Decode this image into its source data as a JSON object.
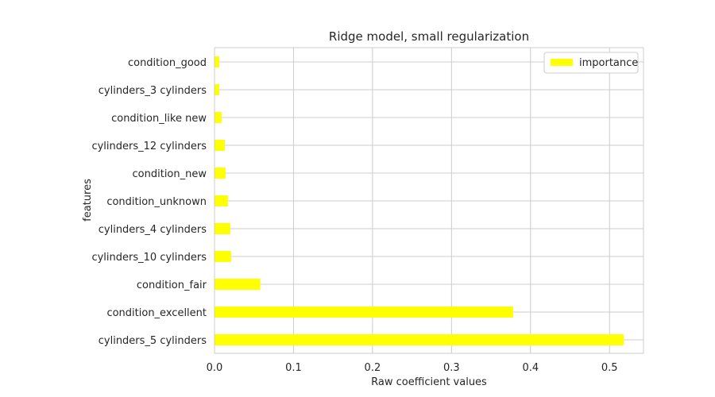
{
  "chart_data": {
    "type": "bar",
    "orientation": "horizontal",
    "title": "Ridge model, small regularization",
    "xlabel": "Raw coefficient values",
    "ylabel": "features",
    "categories": [
      "cylinders_5 cylinders",
      "condition_excellent",
      "condition_fair",
      "cylinders_10 cylinders",
      "cylinders_4 cylinders",
      "condition_unknown",
      "condition_new",
      "cylinders_12 cylinders",
      "condition_like new",
      "cylinders_3 cylinders",
      "condition_good"
    ],
    "series": [
      {
        "name": "importance",
        "color": "#ffff00",
        "values": [
          0.518,
          0.378,
          0.058,
          0.021,
          0.02,
          0.017,
          0.014,
          0.013,
          0.009,
          0.006,
          0.006
        ]
      }
    ],
    "xlim": [
      0,
      0.543
    ],
    "xticks": [
      0.0,
      0.1,
      0.2,
      0.3,
      0.4,
      0.5
    ],
    "xtick_labels": [
      "0.0",
      "0.1",
      "0.2",
      "0.3",
      "0.4",
      "0.5"
    ],
    "grid": true,
    "legend_position": "top-right"
  }
}
